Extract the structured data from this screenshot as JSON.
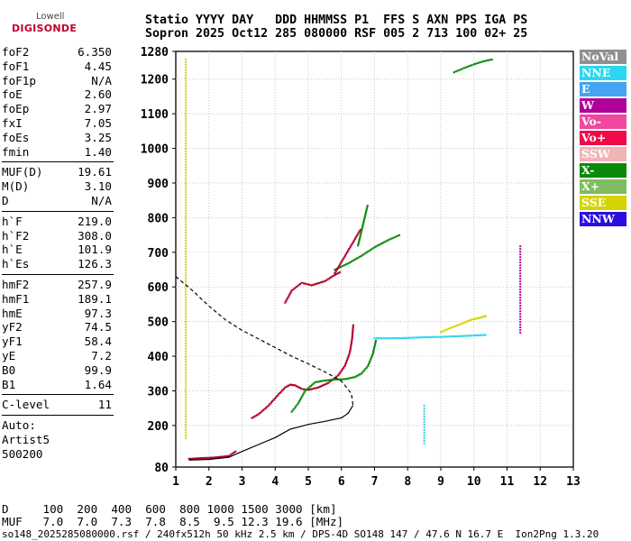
{
  "logo": {
    "line1": "Lowell",
    "line2": "DIGISONDE"
  },
  "header": {
    "line1": "Statio YYYY DAY   DDD HHMMSS P1  FFS S AXN PPS IGA PS",
    "line2": "Sopron 2025 Oct12 285 080000 RSF 005 2 713 100 02+ 25"
  },
  "params": {
    "group1": [
      {
        "name": "foF2",
        "value": "6.350"
      },
      {
        "name": "foF1",
        "value": "4.45"
      },
      {
        "name": "foF1p",
        "value": "N/A"
      },
      {
        "name": "foE",
        "value": "2.60"
      },
      {
        "name": "foEp",
        "value": "2.97"
      },
      {
        "name": "fxI",
        "value": "7.05"
      },
      {
        "name": "foEs",
        "value": "3.25"
      },
      {
        "name": "fmin",
        "value": "1.40"
      }
    ],
    "group2": [
      {
        "name": "MUF(D)",
        "value": "19.61"
      },
      {
        "name": "M(D)",
        "value": "3.10"
      },
      {
        "name": "D",
        "value": "N/A"
      }
    ],
    "group3": [
      {
        "name": "h`F",
        "value": "219.0"
      },
      {
        "name": "h`F2",
        "value": "308.0"
      },
      {
        "name": "h`E",
        "value": "101.9"
      },
      {
        "name": "h`Es",
        "value": "126.3"
      }
    ],
    "group4": [
      {
        "name": "hmF2",
        "value": "257.9"
      },
      {
        "name": "hmF1",
        "value": "189.1"
      },
      {
        "name": "hmE",
        "value": "97.3"
      },
      {
        "name": "yF2",
        "value": "74.5"
      },
      {
        "name": "yF1",
        "value": "58.4"
      },
      {
        "name": "yE",
        "value": "7.2"
      },
      {
        "name": "B0",
        "value": "99.9"
      },
      {
        "name": "B1",
        "value": "1.64"
      }
    ],
    "group5": [
      {
        "name": "C-level",
        "value": "11"
      }
    ],
    "auto_lines": [
      "Auto:",
      "Artist5",
      "500200"
    ]
  },
  "legend": [
    {
      "label": "NoVal",
      "color": "#909090"
    },
    {
      "label": "NNE",
      "color": "#2ad7f0"
    },
    {
      "label": "E",
      "color": "#44a4f0"
    },
    {
      "label": "W",
      "color": "#b0009a"
    },
    {
      "label": "Vo-",
      "color": "#f0489e"
    },
    {
      "label": "Vo+",
      "color": "#f00a48"
    },
    {
      "label": "SSW",
      "color": "#f0b4b4"
    },
    {
      "label": "X-",
      "color": "#0a8a0a"
    },
    {
      "label": "X+",
      "color": "#80bc60"
    },
    {
      "label": "SSE",
      "color": "#d4d400"
    },
    {
      "label": "NNW",
      "color": "#2a10e0"
    }
  ],
  "muf_table": {
    "line1": "D     100  200  400  600  800 1000 1500 3000 [km]",
    "line2": "MUF   7.0  7.0  7.3  7.8  8.5  9.5 12.3 19.6 [MHz]"
  },
  "footer": "so148_2025285080000.rsf / 240fx512h 50 kHz 2.5 km / DPS-4D SO148 147 / 47.6 N 16.7 E  Ion2Png 1.3.20",
  "chart_data": {
    "type": "scatter",
    "title": "",
    "xlabel": "",
    "ylabel": "",
    "xlim": [
      1,
      13
    ],
    "ylim": [
      80,
      1280
    ],
    "x_ticks": [
      1,
      2,
      3,
      4,
      5,
      6,
      7,
      8,
      9,
      10,
      11,
      12,
      13
    ],
    "y_ticks": [
      80,
      200,
      300,
      400,
      500,
      600,
      700,
      800,
      900,
      1000,
      1100,
      1200,
      1280
    ],
    "grid": true,
    "legend_placement": "right",
    "ordinary_trace_color": "#b0002a",
    "extraordinary_trace_color": "#0a8a0a",
    "profile_color": "#000000",
    "series": [
      {
        "mode": "O",
        "x": [
          1.4,
          1.8,
          2.2,
          2.6,
          2.75,
          2.85
        ],
        "y": [
          104,
          106,
          108,
          112,
          122,
          128
        ]
      },
      {
        "mode": "O",
        "x": [
          3.3,
          3.5,
          3.8,
          4.1,
          4.3,
          4.45,
          4.6,
          4.8,
          5.0,
          5.3,
          5.6,
          5.9,
          6.1,
          6.25,
          6.32,
          6.36
        ],
        "y": [
          222,
          233,
          258,
          290,
          310,
          318,
          316,
          306,
          303,
          310,
          323,
          345,
          372,
          410,
          450,
          495
        ]
      },
      {
        "mode": "X",
        "x": [
          4.5,
          4.7,
          4.9,
          5.2,
          5.5,
          5.8,
          6.1,
          6.4,
          6.6,
          6.8,
          6.95,
          7.05
        ],
        "y": [
          240,
          265,
          300,
          325,
          330,
          333,
          334,
          340,
          350,
          372,
          408,
          450
        ]
      },
      {
        "mode": "O",
        "x": [
          4.3,
          4.5,
          4.8,
          5.1,
          5.5,
          5.8,
          6.0
        ],
        "y": [
          555,
          590,
          612,
          605,
          617,
          635,
          645
        ]
      },
      {
        "mode": "X",
        "x": [
          5.8,
          6.2,
          6.6,
          7.0,
          7.4,
          7.8
        ],
        "y": [
          650,
          668,
          690,
          715,
          735,
          752
        ]
      },
      {
        "mode": "O",
        "x": [
          5.8,
          6.6
        ],
        "y": [
          640,
          770
        ]
      },
      {
        "mode": "X",
        "x": [
          6.5,
          6.8
        ],
        "y": [
          720,
          840
        ]
      },
      {
        "mode": "NNE",
        "x": [
          7.0,
          7.5,
          8.0,
          8.5,
          9.0,
          9.5,
          10.0,
          10.4
        ],
        "y": [
          452,
          452,
          453,
          455,
          456,
          458,
          460,
          462
        ]
      },
      {
        "mode": "SSE",
        "x": [
          9.0,
          9.3,
          9.6,
          9.9,
          10.2,
          10.4
        ],
        "y": [
          470,
          482,
          493,
          505,
          512,
          518
        ]
      },
      {
        "mode": "X",
        "x": [
          9.4,
          9.7,
          10.0,
          10.3,
          10.6
        ],
        "y": [
          1220,
          1232,
          1243,
          1252,
          1258
        ]
      },
      {
        "mode": "W",
        "x": [
          11.4,
          11.4,
          11.4,
          11.4
        ],
        "y": [
          470,
          560,
          650,
          720
        ]
      },
      {
        "mode": "NNE",
        "x": [
          8.5,
          8.5,
          8.5
        ],
        "y": [
          150,
          200,
          260
        ]
      },
      {
        "mode": "SSE",
        "x": [
          1.3,
          1.3,
          1.3,
          1.3,
          1.3
        ],
        "y": [
          160,
          260,
          1050,
          1150,
          1260
        ]
      },
      {
        "mode": "profile_N(h)",
        "x": [
          1.4,
          2.0,
          2.6,
          3.0,
          3.5,
          4.0,
          4.45,
          5.0,
          5.5,
          6.0,
          6.2,
          6.35
        ],
        "y": [
          100,
          102,
          108,
          125,
          145,
          165,
          189,
          203,
          212,
          222,
          235,
          258
        ]
      },
      {
        "mode": "model_profile",
        "x": [
          1.0,
          1.5,
          2.0,
          2.5,
          3.0,
          3.5,
          4.0,
          4.5,
          5.0,
          5.5,
          6.0,
          6.3,
          6.35
        ],
        "y": [
          630,
          590,
          545,
          505,
          475,
          450,
          425,
          400,
          378,
          355,
          328,
          292,
          258
        ]
      }
    ]
  }
}
